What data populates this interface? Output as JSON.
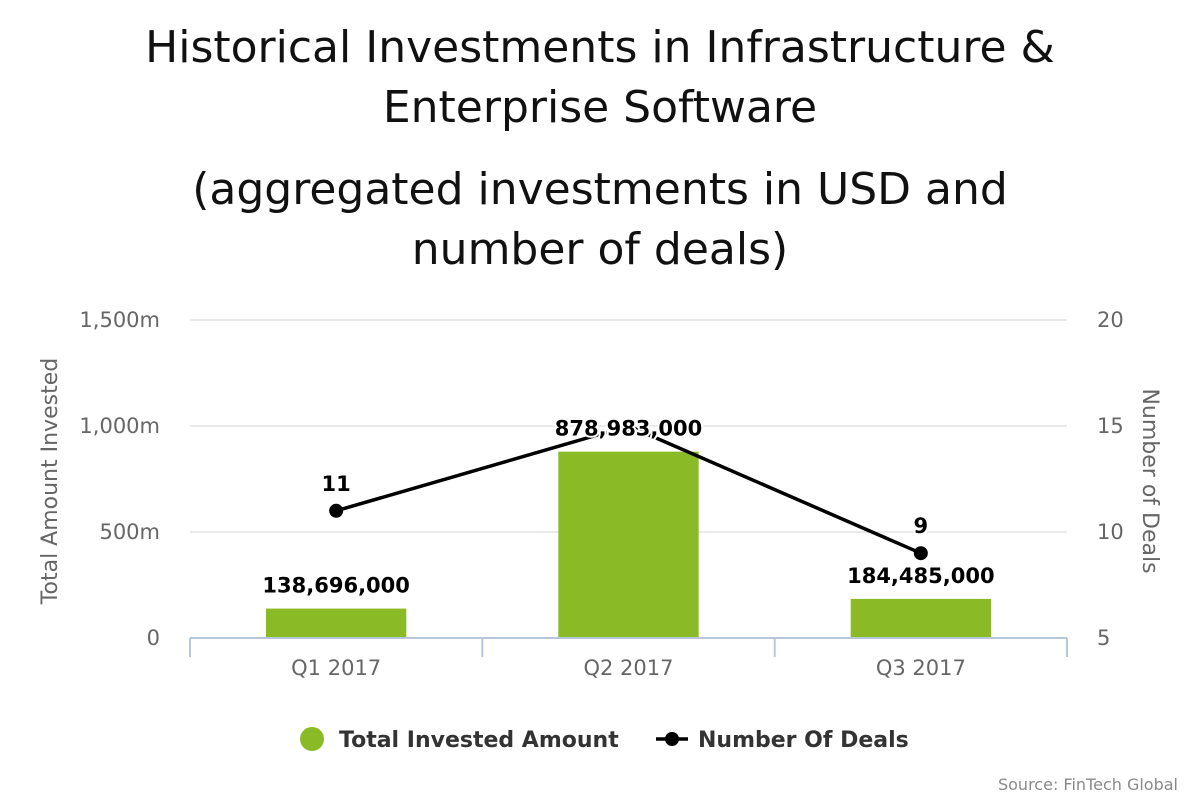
{
  "chart_data": {
    "type": "bar",
    "title": "Historical Investments in Infrastructure & Enterprise Software",
    "subtitle": "(aggregated investments in USD and number of deals)",
    "categories": [
      "Q1 2017",
      "Q2 2017",
      "Q3 2017"
    ],
    "series": [
      {
        "name": "Total Invested Amount",
        "type": "bar",
        "axis": "left",
        "color": "#8aba26",
        "values": [
          138696000,
          878983000,
          184485000
        ],
        "labels": [
          "138,696,000",
          "878,983,000",
          "184,485,000"
        ]
      },
      {
        "name": "Number Of Deals",
        "type": "line",
        "axis": "right",
        "color": "#000000",
        "values": [
          11,
          15,
          9
        ],
        "labels": [
          "11",
          "",
          "9"
        ]
      }
    ],
    "left_axis": {
      "label": "Total Amount Invested",
      "range": [
        0,
        1500000000
      ],
      "ticks": [
        0,
        500000000,
        1000000000,
        1500000000
      ],
      "tick_labels": [
        "0",
        "500m",
        "1,000m",
        "1,500m"
      ]
    },
    "right_axis": {
      "label": "Number of Deals",
      "range": [
        5,
        20
      ],
      "ticks": [
        5,
        10,
        15,
        20
      ],
      "tick_labels": [
        "5",
        "10",
        "15",
        "20"
      ]
    },
    "grid": true,
    "legend": "bottom-center"
  },
  "source": "Source: FinTech Global"
}
